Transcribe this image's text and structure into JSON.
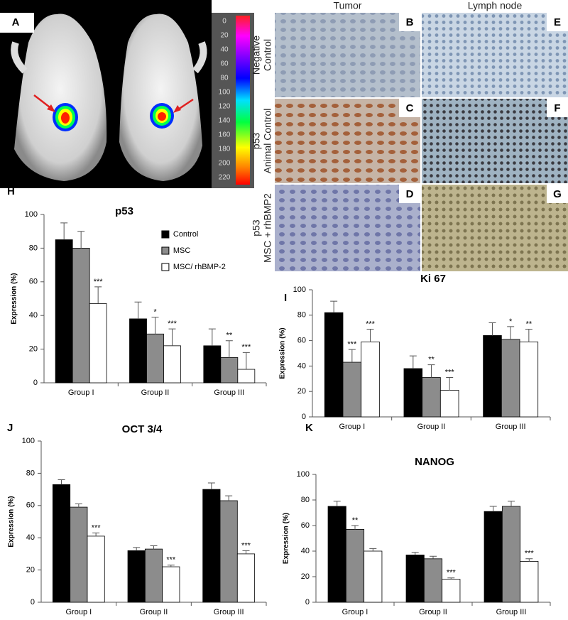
{
  "panels": {
    "A": {
      "label": "A",
      "colorbar_ticks": [
        0,
        20,
        40,
        60,
        80,
        100,
        120,
        140,
        160,
        180,
        200,
        220
      ]
    },
    "histology": {
      "columns": [
        "Tumor",
        "Lymph node"
      ],
      "rows": [
        [
          "Negative",
          "Control"
        ],
        [
          "p53",
          "Animal Control"
        ],
        [
          "p53",
          "MSC + rhBMP2"
        ]
      ],
      "letters": [
        [
          "B",
          "E"
        ],
        [
          "C",
          "F"
        ],
        [
          "D",
          "G"
        ]
      ]
    }
  },
  "chart_data": [
    {
      "type": "bar",
      "label": "H",
      "title": "p53",
      "y_label": "Expression (%)",
      "categories": [
        "Group I",
        "Group II",
        "Group III"
      ],
      "ylim": [
        0,
        100
      ],
      "yticks": [
        0,
        20,
        40,
        60,
        80,
        100
      ],
      "legend": "top-right",
      "series": [
        {
          "name": "Control",
          "color": "#000000",
          "values": [
            85,
            38,
            22
          ],
          "errors": [
            10,
            10,
            10
          ],
          "significance": [
            null,
            null,
            null
          ]
        },
        {
          "name": "MSC",
          "color": "#8c8c8c",
          "values": [
            80,
            29,
            15
          ],
          "errors": [
            10,
            10,
            10
          ],
          "significance": [
            null,
            "*",
            "**"
          ]
        },
        {
          "name": "MSC/ rhBMP-2",
          "color": "#ffffff",
          "values": [
            47,
            22,
            8
          ],
          "errors": [
            10,
            10,
            10
          ],
          "significance": [
            "***",
            "***",
            "***"
          ]
        }
      ]
    },
    {
      "type": "bar",
      "label": "I",
      "title": "Ki 67",
      "y_label": "Expression (%)",
      "categories": [
        "Group I",
        "Group II",
        "Group III"
      ],
      "ylim": [
        0,
        100
      ],
      "yticks": [
        0,
        20,
        40,
        60,
        80,
        100
      ],
      "series": [
        {
          "color": "#000000",
          "values": [
            82,
            38,
            64
          ],
          "errors": [
            9,
            10,
            10
          ],
          "significance": [
            null,
            null,
            null
          ]
        },
        {
          "color": "#8c8c8c",
          "values": [
            43,
            31,
            61
          ],
          "errors": [
            10,
            10,
            10
          ],
          "significance": [
            "***",
            "**",
            "*"
          ]
        },
        {
          "color": "#ffffff",
          "values": [
            59,
            21,
            59
          ],
          "errors": [
            10,
            10,
            10
          ],
          "significance": [
            "***",
            "***",
            "**"
          ]
        }
      ]
    },
    {
      "type": "bar",
      "label": "J",
      "title": "OCT 3/4",
      "y_label": "Expression (%)",
      "categories": [
        "Group I",
        "Group II",
        "Group III"
      ],
      "ylim": [
        0,
        100
      ],
      "yticks": [
        0,
        20,
        40,
        60,
        80,
        100
      ],
      "series": [
        {
          "color": "#000000",
          "values": [
            73,
            32,
            70
          ],
          "errors": [
            3,
            2,
            4
          ],
          "significance": [
            null,
            null,
            null
          ]
        },
        {
          "color": "#8c8c8c",
          "values": [
            59,
            33,
            63
          ],
          "errors": [
            2,
            2,
            3
          ],
          "significance": [
            null,
            null,
            null
          ]
        },
        {
          "color": "#ffffff",
          "values": [
            41,
            22,
            30
          ],
          "errors": [
            2,
            1,
            2
          ],
          "significance": [
            "***",
            "***",
            "***"
          ]
        }
      ]
    },
    {
      "type": "bar",
      "label": "K",
      "title": "NANOG",
      "y_label": "Expression (%)",
      "categories": [
        "Group I",
        "Group II",
        "Group III"
      ],
      "ylim": [
        0,
        100
      ],
      "yticks": [
        0,
        20,
        40,
        60,
        80,
        100
      ],
      "series": [
        {
          "color": "#000000",
          "values": [
            75,
            37,
            71
          ],
          "errors": [
            4,
            2,
            4
          ],
          "significance": [
            null,
            null,
            null
          ]
        },
        {
          "color": "#8c8c8c",
          "values": [
            57,
            34,
            75
          ],
          "errors": [
            3,
            2,
            4
          ],
          "significance": [
            "**",
            null,
            null
          ]
        },
        {
          "color": "#ffffff",
          "values": [
            40,
            18,
            32
          ],
          "errors": [
            2,
            1,
            2
          ],
          "significance": [
            null,
            "***",
            "***"
          ]
        }
      ]
    }
  ]
}
